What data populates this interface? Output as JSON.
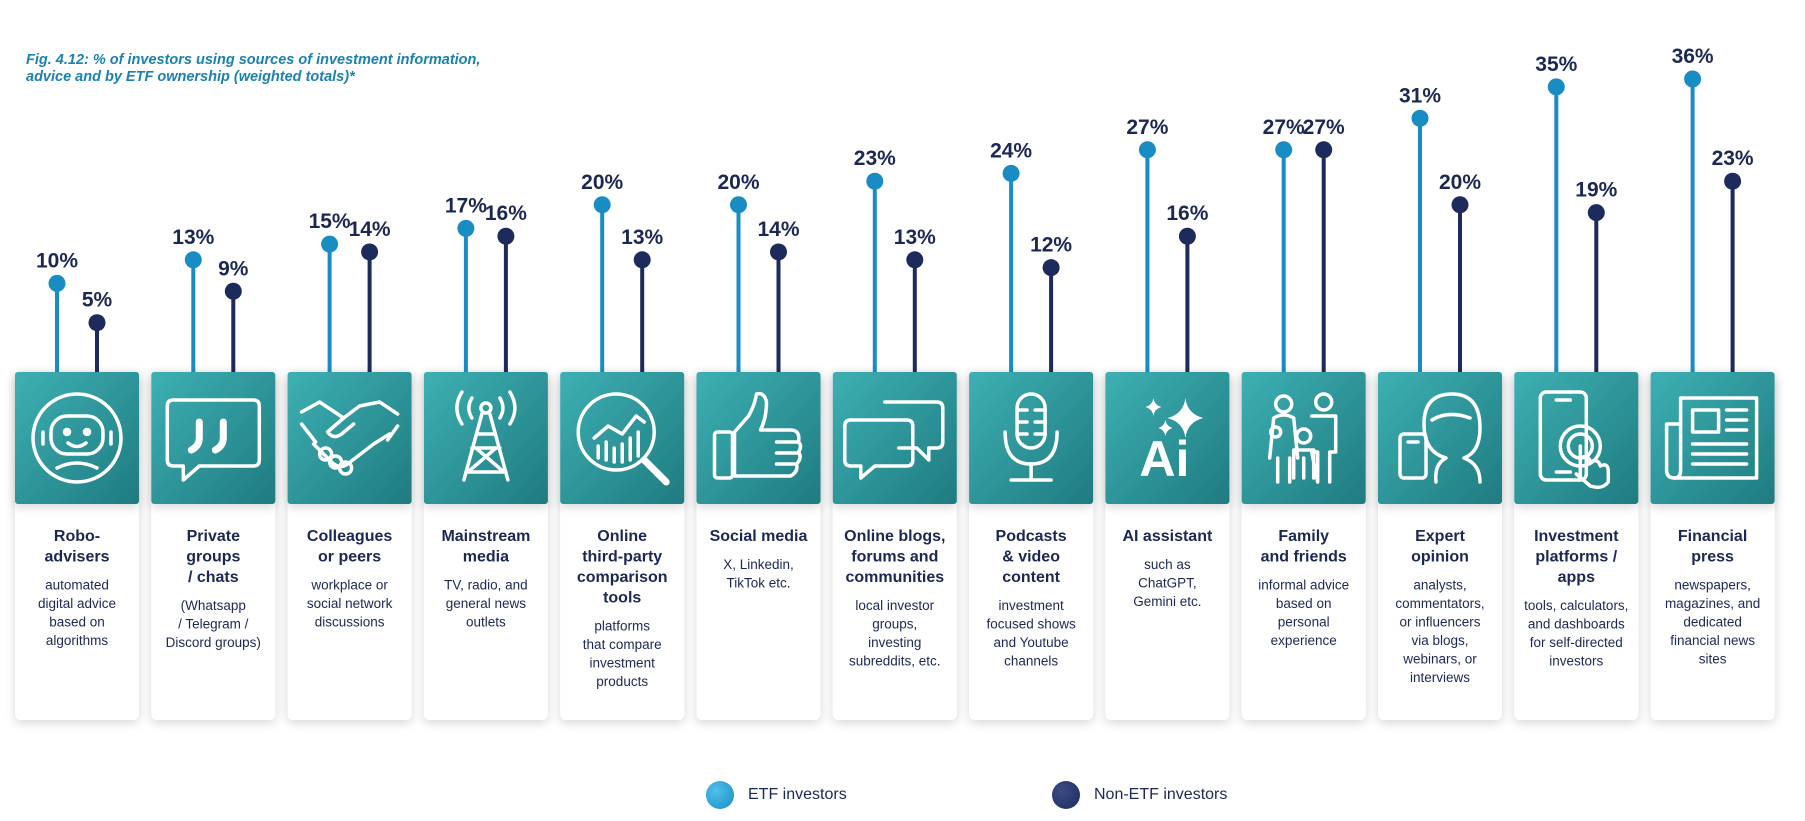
{
  "title_lines": [
    "Fig. 4.12: % of investors using sources of investment information,",
    "advice and by ETF ownership (weighted totals)*"
  ],
  "colors": {
    "etf": "#1a8cc4",
    "non_etf": "#1d2b5c",
    "tile_light": "#3db0b3",
    "tile_dark": "#1f7b80",
    "text": "#1c2854"
  },
  "chart_data": {
    "type": "lollipop",
    "title": "Fig. 4.12: % of investors using sources of investment information, advice and by ETF ownership (weighted totals)*",
    "categories": [
      "Robo-advisers",
      "Private groups / chats",
      "Colleagues or peers",
      "Mainstream media",
      "Online third-party comparison tools",
      "Social media",
      "Online blogs, forums and communities",
      "Podcasts & video content",
      "AI assistant",
      "Family and friends",
      "Expert opinion",
      "Investment platforms / apps",
      "Financial press"
    ],
    "series": [
      {
        "name": "ETF investors",
        "values": [
          10,
          13,
          15,
          17,
          20,
          20,
          23,
          24,
          27,
          27,
          31,
          35,
          36
        ]
      },
      {
        "name": "Non-ETF investors",
        "values": [
          5,
          9,
          14,
          16,
          13,
          14,
          13,
          12,
          16,
          27,
          20,
          19,
          23
        ]
      }
    ],
    "ylim": [
      0,
      38
    ],
    "grid": false,
    "legend_position": "bottom-center"
  },
  "items": [
    {
      "title": [
        "Robo-",
        "advisers"
      ],
      "desc": [
        "automated",
        "digital advice",
        "based on",
        "algorithms"
      ],
      "icon": "robot-icon"
    },
    {
      "title": [
        "Private",
        "groups",
        "/ chats"
      ],
      "desc": [
        "(Whatsapp",
        "/ Telegram /",
        "Discord groups)"
      ],
      "icon": "quote-bubble-icon"
    },
    {
      "title": [
        "Colleagues",
        "or peers"
      ],
      "desc": [
        "workplace or",
        "social network",
        "discussions"
      ],
      "icon": "handshake-icon"
    },
    {
      "title": [
        "Mainstream",
        "media"
      ],
      "desc": [
        "TV, radio, and",
        "general news",
        "outlets"
      ],
      "icon": "broadcast-tower-icon"
    },
    {
      "title": [
        "Online",
        "third-party",
        "comparison",
        "tools"
      ],
      "desc": [
        "platforms",
        "that compare",
        "investment",
        "products"
      ],
      "icon": "magnifier-chart-icon"
    },
    {
      "title": [
        "Social media"
      ],
      "desc": [
        "X, Linkedin,",
        "TikTok etc."
      ],
      "icon": "thumbs-up-icon"
    },
    {
      "title": [
        "Online blogs,",
        "forums and",
        "communities"
      ],
      "desc": [
        "local investor",
        "groups,",
        "investing",
        "subreddits, etc."
      ],
      "icon": "chat-bubbles-icon"
    },
    {
      "title": [
        "Podcasts",
        "& video",
        "content"
      ],
      "desc": [
        "investment",
        "focused shows",
        "and Youtube",
        "channels"
      ],
      "icon": "microphone-icon"
    },
    {
      "title": [
        "AI assistant"
      ],
      "desc": [
        "such as",
        "ChatGPT,",
        "Gemini etc."
      ],
      "icon": "ai-sparkle-icon"
    },
    {
      "title": [
        "Family",
        "and friends"
      ],
      "desc": [
        "informal advice",
        "based on",
        "personal",
        "experience"
      ],
      "icon": "family-icon"
    },
    {
      "title": [
        "Expert",
        "opinion"
      ],
      "desc": [
        "analysts,",
        "commentators,",
        "or influencers",
        "via blogs,",
        "webinars, or",
        "interviews"
      ],
      "icon": "expert-phone-icon"
    },
    {
      "title": [
        "Investment",
        "platforms /",
        "apps"
      ],
      "desc": [
        "tools, calculators,",
        "and dashboards",
        "for self-directed",
        "investors"
      ],
      "icon": "mobile-tap-icon"
    },
    {
      "title": [
        "Financial",
        "press"
      ],
      "desc": [
        "newspapers,",
        "magazines, and",
        "dedicated",
        "financial news",
        "sites"
      ],
      "icon": "newspaper-icon"
    }
  ],
  "legend": {
    "etf": "ETF investors",
    "non_etf": "Non-ETF investors"
  }
}
